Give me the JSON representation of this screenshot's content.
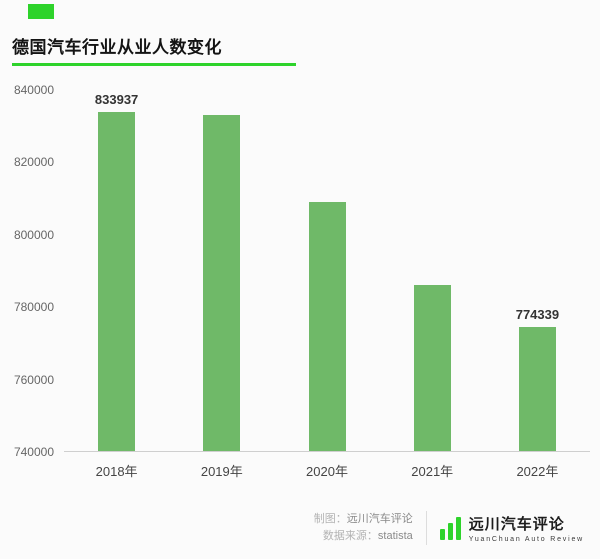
{
  "accent_color": "#2ed32b",
  "bar_color": "#6fb968",
  "header": {
    "title": "德国汽车行业从业人数变化"
  },
  "chart_data": {
    "type": "bar",
    "title": "德国汽车行业从业人数变化",
    "categories": [
      "2018年",
      "2019年",
      "2020年",
      "2021年",
      "2022年"
    ],
    "values": [
      833937,
      833000,
      809000,
      786000,
      774339
    ],
    "value_labels": [
      "833937",
      "",
      "",
      "",
      "774339"
    ],
    "xlabel": "",
    "ylabel": "",
    "ylim": [
      740000,
      840000
    ],
    "yticks": [
      840000,
      820000,
      800000,
      780000,
      760000,
      740000
    ],
    "grid": false,
    "legend": "none",
    "bar_color": "#6fb968"
  },
  "footer": {
    "credit_label": "制图：",
    "credit_value": "远川汽车评论",
    "source_label": "数据来源：",
    "source_value": "statista",
    "logo": {
      "name": "远川汽车评论",
      "subtitle": "YuanChuan Auto Review"
    }
  }
}
